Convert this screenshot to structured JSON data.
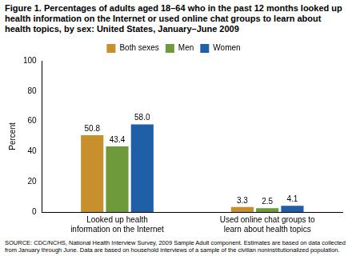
{
  "chart_data": {
    "type": "bar",
    "title": "Figure 1. Percentages of adults aged 18–64 who in the past 12 months looked up health information on the Internet or used online chat groups to learn about health topics, by sex: United States, January–June 2009",
    "y_label": "Percent",
    "categories": [
      "Looked up health information on the Internet",
      "Used online chat groups to learn about health topics"
    ],
    "series": [
      {
        "name": "Both sexes",
        "color": "#c8902c",
        "values": [
          50.8,
          3.3
        ],
        "value_labels": [
          "50.8",
          "3.3"
        ]
      },
      {
        "name": "Men",
        "color": "#6e9a3c",
        "values": [
          43.4,
          2.5
        ],
        "value_labels": [
          "43.4",
          "2.5"
        ]
      },
      {
        "name": "Women",
        "color": "#1f5fa8",
        "values": [
          58.0,
          4.1
        ],
        "value_labels": [
          "58.0",
          "4.1"
        ]
      }
    ],
    "ylim": [
      0,
      100
    ],
    "yticks": [
      0,
      20,
      40,
      60,
      80,
      100
    ],
    "grid": false,
    "legend": "top",
    "data_labels": true,
    "source": "SOURCE: CDC/NCHS, National Health Interview Survey, 2009 Sample Adult component. Estimates are based on data collected from January through June. Data are based on household interviews of a sample of the civilian noninstitutionalized population."
  }
}
